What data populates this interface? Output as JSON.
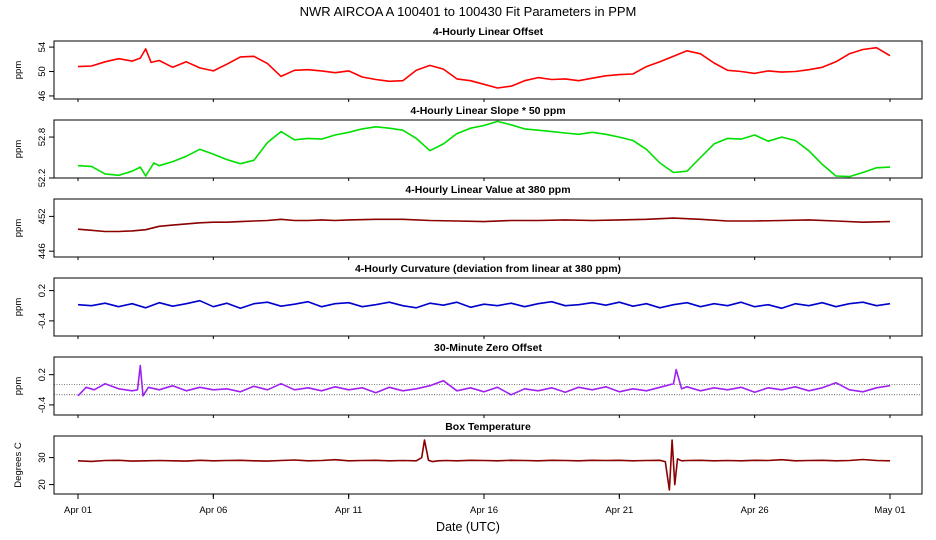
{
  "page": {
    "title": "NWR   AIRCOA A   100401 to 100430   Fit Parameters in PPM",
    "x_axis_label": "Date (UTC)",
    "x_ticks": [
      {
        "day": 0,
        "label": "Apr 01"
      },
      {
        "day": 5,
        "label": "Apr 06"
      },
      {
        "day": 10,
        "label": "Apr 11"
      },
      {
        "day": 15,
        "label": "Apr 16"
      },
      {
        "day": 20,
        "label": "Apr 21"
      },
      {
        "day": 25,
        "label": "Apr 26"
      },
      {
        "day": 30,
        "label": "May 01"
      }
    ],
    "x_range": [
      0,
      30
    ]
  },
  "chart_data": [
    {
      "type": "line",
      "title": "4-Hourly Linear Offset",
      "ylabel": "ppm",
      "ylim": [
        45.5,
        55
      ],
      "yticks": [
        {
          "value": 46,
          "label": "46"
        },
        {
          "value": 50,
          "label": "50"
        },
        {
          "value": 54,
          "label": "54"
        }
      ],
      "color": "#ff0000",
      "series": [
        {
          "x": [
            0,
            0.5,
            1,
            1.5,
            2,
            2.3,
            2.5,
            2.7,
            3,
            3.5,
            4,
            4.5,
            5,
            5.5,
            6,
            6.5,
            7,
            7.5,
            8,
            8.5,
            9,
            9.5,
            10,
            10.5,
            11,
            11.5,
            12,
            12.5,
            13,
            13.5,
            14,
            14.5,
            15,
            15.5,
            16,
            16.5,
            17,
            17.5,
            18,
            18.5,
            19,
            19.5,
            20,
            20.5,
            21,
            21.5,
            22,
            22.5,
            23,
            23.5,
            24,
            24.5,
            25,
            25.5,
            26,
            26.5,
            27,
            27.5,
            28,
            28.5,
            29,
            29.5,
            30
          ],
          "y": [
            50.8,
            50.9,
            51.6,
            52.1,
            51.7,
            52.2,
            53.7,
            51.5,
            51.8,
            50.7,
            51.6,
            50.6,
            50.1,
            51.2,
            52.4,
            52.5,
            51.3,
            49.2,
            50.2,
            50.3,
            50.1,
            49.8,
            50.1,
            49.1,
            48.7,
            48.4,
            48.5,
            50.2,
            51,
            50.4,
            48.8,
            48.5,
            47.9,
            47.3,
            47.6,
            48.5,
            49,
            48.7,
            48.8,
            48.5,
            48.9,
            49.3,
            49.5,
            49.6,
            50.8,
            51.6,
            52.5,
            53.4,
            52.9,
            51.4,
            50.2,
            50,
            49.7,
            50.1,
            49.9,
            50,
            50.3,
            50.7,
            51.6,
            52.9,
            53.6,
            53.9,
            52.6
          ]
        }
      ]
    },
    {
      "type": "line",
      "title": "4-Hourly Linear Slope * 50 ppm",
      "ylabel": "ppm",
      "ylim": [
        52.2,
        53.05
      ],
      "yticks": [
        {
          "value": 52.2,
          "label": "52.2"
        },
        {
          "value": 52.8,
          "label": "52.8"
        }
      ],
      "color": "#00e000",
      "series": [
        {
          "x": [
            0,
            0.5,
            1,
            1.5,
            2,
            2.3,
            2.5,
            2.8,
            3,
            3.5,
            4,
            4.5,
            5,
            5.5,
            6,
            6.5,
            7,
            7.5,
            8,
            8.5,
            9,
            9.5,
            10,
            10.5,
            11,
            11.5,
            12,
            12.5,
            13,
            13.5,
            14,
            14.5,
            15,
            15.5,
            16,
            16.5,
            17,
            17.5,
            18,
            18.5,
            19,
            19.5,
            20,
            20.5,
            21,
            21.5,
            22,
            22.5,
            23,
            23.5,
            24,
            24.5,
            25,
            25.5,
            26,
            26.5,
            27,
            27.5,
            28,
            28.5,
            29,
            29.5,
            30
          ],
          "y": [
            52.38,
            52.37,
            52.26,
            52.24,
            52.3,
            52.36,
            52.23,
            52.42,
            52.38,
            52.44,
            52.52,
            52.62,
            52.55,
            52.47,
            52.41,
            52.46,
            52.72,
            52.88,
            52.76,
            52.78,
            52.77,
            52.83,
            52.87,
            52.92,
            52.95,
            52.93,
            52.9,
            52.78,
            52.6,
            52.7,
            52.85,
            52.93,
            52.97,
            53.03,
            52.98,
            52.92,
            52.9,
            52.88,
            52.86,
            52.84,
            52.87,
            52.84,
            52.8,
            52.75,
            52.62,
            52.42,
            52.28,
            52.3,
            52.5,
            52.7,
            52.78,
            52.77,
            52.83,
            52.74,
            52.8,
            52.75,
            52.6,
            52.4,
            52.23,
            52.22,
            52.28,
            52.35,
            52.36
          ]
        }
      ]
    },
    {
      "type": "line",
      "title": "4-Hourly Linear Value at 380 ppm",
      "ylabel": "ppm",
      "ylim": [
        445,
        455
      ],
      "yticks": [
        {
          "value": 446,
          "label": "446"
        },
        {
          "value": 452,
          "label": "452"
        }
      ],
      "color": "#8b0000",
      "series": [
        {
          "x": [
            0,
            0.5,
            1,
            1.5,
            2,
            2.5,
            3,
            3.5,
            4,
            4.5,
            5,
            5.5,
            6,
            6.5,
            7,
            7.5,
            8,
            8.5,
            9,
            9.5,
            10,
            11,
            12,
            13,
            14,
            15,
            16,
            17,
            18,
            19,
            20,
            21,
            22,
            23,
            24,
            25,
            26,
            27,
            28,
            29,
            30
          ],
          "y": [
            449.8,
            449.6,
            449.4,
            449.4,
            449.5,
            449.7,
            450.3,
            450.5,
            450.7,
            450.9,
            451,
            451,
            451.1,
            451.2,
            451.3,
            451.5,
            451.3,
            451.3,
            451.4,
            451.3,
            451.4,
            451.5,
            451.5,
            451.3,
            451.2,
            451.1,
            451.3,
            451.3,
            451.4,
            451.3,
            451.4,
            451.5,
            451.7,
            451.5,
            451.2,
            451.2,
            451.3,
            451.4,
            451.2,
            451,
            451.1
          ]
        }
      ]
    },
    {
      "type": "line",
      "title": "4-Hourly Curvature (deviation from linear at 380 ppm)",
      "ylabel": "ppm",
      "ylim": [
        -0.7,
        0.45
      ],
      "yticks": [
        {
          "value": -0.4,
          "label": "-0.4"
        },
        {
          "value": 0.2,
          "label": "0.2"
        }
      ],
      "color": "#0000cc",
      "series": [
        {
          "x": [
            0,
            0.5,
            1,
            1.5,
            2,
            2.5,
            3,
            3.5,
            4,
            4.5,
            5,
            5.5,
            6,
            6.5,
            7,
            7.5,
            8,
            8.5,
            9,
            9.5,
            10,
            10.5,
            11,
            11.5,
            12,
            12.5,
            13,
            13.5,
            14,
            14.5,
            15,
            15.5,
            16,
            16.5,
            17,
            17.5,
            18,
            18.5,
            19,
            19.5,
            20,
            20.5,
            21,
            21.5,
            22,
            22.5,
            23,
            23.5,
            24,
            24.5,
            25,
            25.5,
            26,
            26.5,
            27,
            27.5,
            28,
            28.5,
            29,
            29.5,
            30
          ],
          "y": [
            -0.08,
            -0.1,
            -0.05,
            -0.12,
            -0.06,
            -0.14,
            -0.04,
            -0.11,
            -0.06,
            0,
            -0.12,
            -0.05,
            -0.15,
            -0.06,
            -0.03,
            -0.11,
            -0.07,
            -0.02,
            -0.12,
            -0.06,
            -0.04,
            -0.12,
            -0.08,
            -0.03,
            -0.1,
            -0.14,
            -0.05,
            -0.09,
            -0.03,
            -0.13,
            -0.07,
            -0.1,
            -0.05,
            -0.12,
            -0.06,
            -0.02,
            -0.1,
            -0.08,
            -0.04,
            -0.09,
            -0.03,
            -0.11,
            -0.06,
            -0.14,
            -0.08,
            -0.04,
            -0.12,
            -0.06,
            -0.1,
            -0.03,
            -0.12,
            -0.08,
            -0.15,
            -0.06,
            -0.1,
            -0.04,
            -0.12,
            -0.06,
            -0.03,
            -0.1,
            -0.06
          ]
        }
      ]
    },
    {
      "type": "line",
      "title": "30-Minute Zero Offset",
      "ylabel": "ppm",
      "ylim": [
        -0.6,
        0.55
      ],
      "yticks": [
        {
          "value": -0.4,
          "label": "-0.4"
        },
        {
          "value": 0.2,
          "label": "0.2"
        }
      ],
      "color": "#a020f0",
      "reference_lines": [
        0,
        -0.2
      ],
      "series": [
        {
          "x": [
            0,
            0.3,
            0.6,
            1,
            1.5,
            2,
            2.2,
            2.3,
            2.4,
            2.6,
            3,
            3.5,
            4,
            4.5,
            5,
            5.5,
            6,
            6.5,
            7,
            7.5,
            8,
            8.5,
            9,
            9.5,
            10,
            10.5,
            11,
            11.5,
            12,
            12.5,
            13,
            13.5,
            14,
            14.5,
            15,
            15.5,
            16,
            16.5,
            17,
            17.5,
            18,
            18.5,
            19,
            19.5,
            20,
            20.5,
            21,
            21.5,
            22,
            22.1,
            22.3,
            22.5,
            23,
            23.5,
            24,
            24.5,
            25,
            25.5,
            26,
            26.5,
            27,
            27.5,
            28,
            28.5,
            29,
            29.5,
            30
          ],
          "y": [
            -0.22,
            -0.05,
            -0.1,
            0.02,
            -0.08,
            -0.12,
            -0.1,
            0.38,
            -0.22,
            -0.05,
            -0.1,
            -0.02,
            -0.12,
            -0.05,
            -0.1,
            -0.08,
            -0.14,
            -0.03,
            -0.1,
            0.02,
            -0.1,
            -0.06,
            -0.12,
            -0.04,
            -0.1,
            -0.06,
            -0.16,
            -0.05,
            -0.12,
            -0.08,
            -0.02,
            0.08,
            -0.12,
            -0.06,
            -0.14,
            -0.05,
            -0.2,
            -0.08,
            -0.12,
            -0.06,
            -0.15,
            -0.05,
            -0.1,
            -0.04,
            -0.14,
            -0.08,
            -0.12,
            -0.05,
            0.02,
            0.3,
            -0.08,
            -0.04,
            -0.12,
            -0.06,
            -0.1,
            -0.05,
            -0.15,
            -0.06,
            -0.1,
            -0.04,
            -0.12,
            -0.06,
            0.04,
            -0.1,
            -0.14,
            -0.06,
            -0.02
          ]
        }
      ]
    },
    {
      "type": "line",
      "title": "Box Temperature",
      "ylabel": "Degrees C",
      "ylim": [
        16.5,
        38
      ],
      "yticks": [
        {
          "value": 20,
          "label": "20"
        },
        {
          "value": 30,
          "label": "30"
        }
      ],
      "color": "#8b0000",
      "series": [
        {
          "x": [
            0,
            0.5,
            1,
            1.5,
            2,
            2.5,
            3,
            3.5,
            4,
            4.5,
            5,
            5.5,
            6,
            6.5,
            7,
            7.5,
            8,
            8.5,
            9,
            9.5,
            10,
            10.5,
            11,
            11.5,
            12,
            12.5,
            12.7,
            12.8,
            12.95,
            13.1,
            13.3,
            13.6,
            14,
            14.5,
            15,
            15.5,
            16,
            16.5,
            17,
            17.5,
            18,
            18.5,
            19,
            19.5,
            20,
            20.5,
            21,
            21.5,
            21.7,
            21.85,
            21.95,
            22.05,
            22.15,
            22.3,
            22.5,
            23,
            23.5,
            24,
            24.5,
            25,
            25.5,
            26,
            26.5,
            27,
            27.5,
            28,
            28.5,
            29,
            29.5,
            30
          ],
          "y": [
            28.8,
            28.6,
            28.9,
            29,
            28.7,
            28.8,
            28.9,
            28.8,
            28.7,
            29,
            28.8,
            28.9,
            29,
            28.8,
            28.7,
            28.9,
            29.1,
            28.8,
            28.9,
            29.2,
            28.8,
            28.9,
            29,
            28.8,
            28.9,
            28.8,
            30,
            36.5,
            29,
            28.5,
            28.8,
            28.9,
            28.8,
            29,
            28.9,
            28.8,
            29,
            28.9,
            28.8,
            29,
            28.9,
            28.8,
            29,
            28.9,
            29,
            28.8,
            28.9,
            29,
            28.5,
            18,
            36.5,
            20,
            29.5,
            28.8,
            28.9,
            29,
            28.8,
            28.9,
            28.8,
            29,
            28.9,
            29.2,
            28.8,
            28.9,
            29,
            28.8,
            28.9,
            29.3,
            28.9,
            28.8
          ]
        }
      ]
    }
  ]
}
